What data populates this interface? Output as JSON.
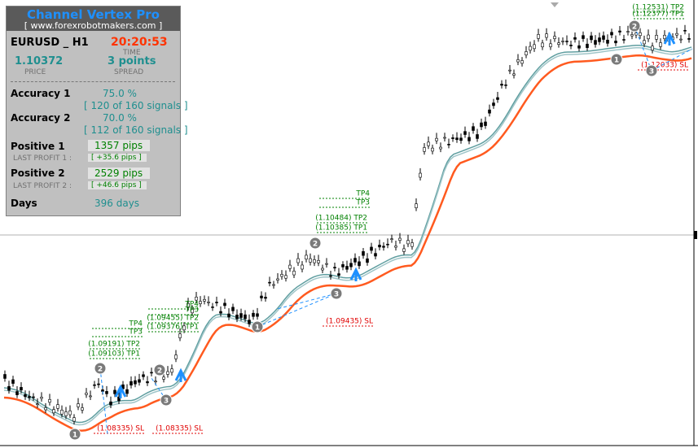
{
  "panel": {
    "title": "Channel Vertex Pro",
    "url": "[ www.forexrobotmakers.com ]",
    "symbol": "EURUSD _ H1",
    "time": "20:20:53",
    "time_label": "TIME",
    "price": "1.10372",
    "price_label": "PRICE",
    "spread": "3 points",
    "spread_label": "SPREAD",
    "accuracy": [
      {
        "label": "Accuracy 1",
        "value": "75.0 %",
        "detail": "[ 120 of 160 signals ]"
      },
      {
        "label": "Accuracy 2",
        "value": "70.0 %",
        "detail": "[ 112 of 160 signals ]"
      }
    ],
    "positive": [
      {
        "label": "Positive 1",
        "value": "1357 pips",
        "last_label": "LAST PROFIT 1 :",
        "last_value": "[ +35.6 pips ]"
      },
      {
        "label": "Positive 2",
        "value": "2529 pips",
        "last_label": "LAST PROFIT 2 :",
        "last_value": "[ +46.6 pips ]"
      }
    ],
    "days_label": "Days",
    "days_value": "396 days"
  },
  "annotations": [
    {
      "text": "TP4"
    },
    {
      "text": "TP3"
    },
    {
      "text": "(1.09191) TP2"
    },
    {
      "text": "(1.09103) TP1"
    },
    {
      "text": "(1.08335) SL"
    },
    {
      "text": "TP4"
    },
    {
      "text": "TP3"
    },
    {
      "text": "(1.09455) TP2"
    },
    {
      "text": "(1.09376) TP1"
    },
    {
      "text": "(1.08335) SL"
    },
    {
      "text": "TP4"
    },
    {
      "text": "TP3"
    },
    {
      "text": "(1.10484) TP2"
    },
    {
      "text": "(1.10385) TP1"
    },
    {
      "text": "(1.09435) SL"
    },
    {
      "text": "(1.12531) TP2"
    },
    {
      "text": "(1.12377) TP1"
    },
    {
      "text": "(1.12033) SL"
    }
  ],
  "markers": [
    {
      "label": "1"
    },
    {
      "label": "2"
    },
    {
      "label": "2"
    },
    {
      "label": "3"
    },
    {
      "label": "1"
    },
    {
      "label": "2"
    },
    {
      "label": "3"
    },
    {
      "label": "1"
    },
    {
      "label": "2"
    },
    {
      "label": "3"
    }
  ]
}
